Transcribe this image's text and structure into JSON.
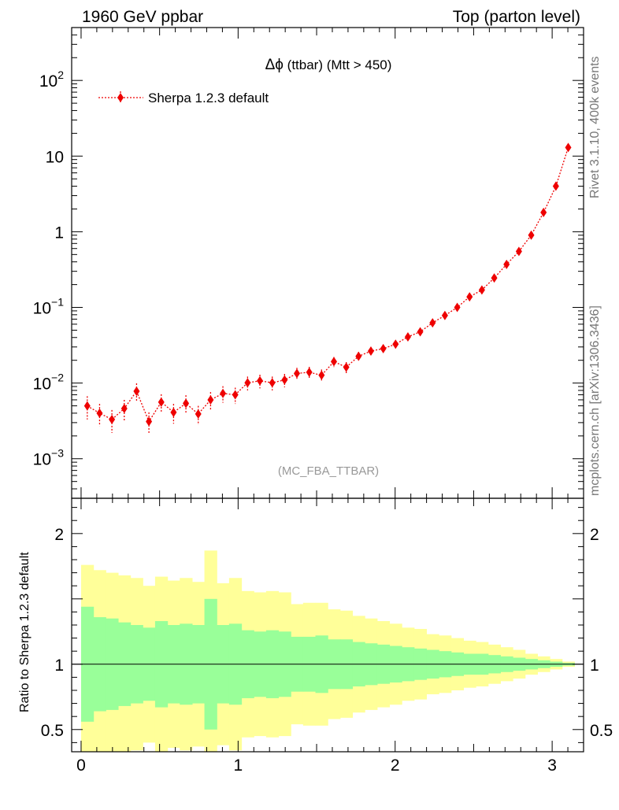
{
  "header": {
    "left": "1960 GeV ppbar",
    "right": "Top (parton level)"
  },
  "side_labels": {
    "rivet": "Rivet 3.1.10,  400k events",
    "mcplots": "mcplots.cern.ch [arXiv:1306.3436]"
  },
  "analysis_tag": "(MC_FBA_TTBAR)",
  "colors": {
    "data": "#ee0000",
    "band_inner": "#99ff99",
    "band_outer": "#ffff99"
  },
  "chart_data": [
    {
      "type": "scatter",
      "title": "Δφ (ttbar) (Mtt > 450)",
      "title_prefix": "Δϕ",
      "title_suffix": " (ttbar) (Mtt > 450)",
      "yscale": "log",
      "ylim": [
        0.0003,
        500
      ],
      "xlim": [
        -0.06,
        3.2
      ],
      "legend": {
        "label": "Sherpa 1.2.3 default",
        "placement": "top-left"
      },
      "y_tick_labels": [
        {
          "value": 0.001,
          "base": "10",
          "exp": "−3"
        },
        {
          "value": 0.01,
          "base": "10",
          "exp": "−2"
        },
        {
          "value": 0.1,
          "base": "10",
          "exp": "−1"
        },
        {
          "value": 1,
          "base": "1",
          "exp": ""
        },
        {
          "value": 10,
          "base": "10",
          "exp": ""
        },
        {
          "value": 100,
          "base": "10",
          "exp": "2"
        }
      ],
      "series": [
        {
          "name": "Sherpa 1.2.3 default",
          "x": [
            0.0393,
            0.1178,
            0.1963,
            0.2749,
            0.3534,
            0.432,
            0.5105,
            0.589,
            0.6676,
            0.7461,
            0.8247,
            0.9032,
            0.9817,
            1.0603,
            1.1388,
            1.2174,
            1.2959,
            1.3744,
            1.453,
            1.5315,
            1.6101,
            1.6886,
            1.7671,
            1.8457,
            1.9242,
            2.0028,
            2.0813,
            2.1598,
            2.2384,
            2.3169,
            2.3955,
            2.474,
            2.5525,
            2.6311,
            2.7096,
            2.7882,
            2.8667,
            2.9452,
            3.0238,
            3.1023
          ],
          "y": [
            0.005,
            0.004,
            0.0033,
            0.0046,
            0.0078,
            0.0031,
            0.0056,
            0.0041,
            0.0054,
            0.0039,
            0.006,
            0.0073,
            0.007,
            0.0101,
            0.0107,
            0.0101,
            0.011,
            0.0134,
            0.0139,
            0.0127,
            0.0192,
            0.0162,
            0.0226,
            0.0265,
            0.0285,
            0.0326,
            0.0408,
            0.0476,
            0.0625,
            0.0782,
            0.1001,
            0.138,
            0.17,
            0.245,
            0.37,
            0.55,
            0.9,
            1.8,
            4.0,
            13.0
          ],
          "yerr": [
            0.0017,
            0.0013,
            0.0011,
            0.0014,
            0.0021,
            0.001,
            0.0015,
            0.0012,
            0.0015,
            0.0011,
            0.0016,
            0.0018,
            0.0017,
            0.0021,
            0.0022,
            0.0021,
            0.0022,
            0.0025,
            0.0025,
            0.0024,
            0.0029,
            0.0027,
            0.0032,
            0.0034,
            0.0036,
            0.0038,
            0.0042,
            0.0046,
            0.0052,
            0.0058,
            0.0065,
            0.0076,
            0.0084,
            0.01,
            0.012,
            0.015,
            0.019,
            0.027,
            0.04,
            0.072
          ]
        }
      ]
    },
    {
      "type": "area",
      "ylabel": "Ratio to Sherpa 1.2.3 default",
      "xlim": [
        -0.06,
        3.2
      ],
      "ylim": [
        0.33,
        2.27
      ],
      "x_tick_labels": [
        "0",
        "1",
        "2",
        "3"
      ],
      "y_tick_labels": [
        "0.5",
        "1",
        "2"
      ],
      "reference_line": 1,
      "bin_edges": [
        0.0,
        0.0785,
        0.1571,
        0.2356,
        0.3142,
        0.3927,
        0.4712,
        0.5498,
        0.6283,
        0.7069,
        0.7854,
        0.8639,
        0.9425,
        1.021,
        1.0996,
        1.1781,
        1.2566,
        1.3352,
        1.4137,
        1.4923,
        1.5708,
        1.6493,
        1.7279,
        1.8064,
        1.885,
        1.9635,
        2.042,
        2.1206,
        2.1991,
        2.2777,
        2.3562,
        2.4347,
        2.5133,
        2.5918,
        2.6704,
        2.7489,
        2.8274,
        2.906,
        2.9845,
        3.0631,
        3.1416
      ],
      "outer_up": [
        1.76,
        1.72,
        1.7,
        1.68,
        1.66,
        1.6,
        1.67,
        1.64,
        1.66,
        1.63,
        1.87,
        1.62,
        1.66,
        1.56,
        1.55,
        1.56,
        1.55,
        1.46,
        1.47,
        1.47,
        1.42,
        1.41,
        1.37,
        1.35,
        1.33,
        1.31,
        1.28,
        1.27,
        1.23,
        1.22,
        1.2,
        1.18,
        1.17,
        1.15,
        1.13,
        1.11,
        1.08,
        1.06,
        1.04,
        1.02
      ],
      "outer_dn": [
        0.24,
        0.28,
        0.3,
        0.32,
        0.34,
        0.4,
        0.33,
        0.36,
        0.34,
        0.37,
        0.13,
        0.38,
        0.34,
        0.44,
        0.45,
        0.44,
        0.45,
        0.54,
        0.53,
        0.53,
        0.58,
        0.59,
        0.63,
        0.65,
        0.67,
        0.69,
        0.72,
        0.73,
        0.77,
        0.78,
        0.8,
        0.82,
        0.83,
        0.85,
        0.87,
        0.89,
        0.92,
        0.94,
        0.96,
        0.98
      ],
      "inner_up": [
        1.44,
        1.36,
        1.35,
        1.32,
        1.3,
        1.28,
        1.33,
        1.3,
        1.31,
        1.3,
        1.5,
        1.3,
        1.31,
        1.26,
        1.25,
        1.26,
        1.25,
        1.21,
        1.21,
        1.22,
        1.19,
        1.19,
        1.17,
        1.16,
        1.15,
        1.14,
        1.13,
        1.12,
        1.11,
        1.1,
        1.09,
        1.08,
        1.08,
        1.07,
        1.06,
        1.05,
        1.04,
        1.03,
        1.02,
        1.01
      ],
      "inner_dn": [
        0.56,
        0.64,
        0.65,
        0.68,
        0.7,
        0.72,
        0.67,
        0.7,
        0.69,
        0.7,
        0.5,
        0.7,
        0.69,
        0.74,
        0.75,
        0.74,
        0.75,
        0.79,
        0.79,
        0.78,
        0.81,
        0.81,
        0.83,
        0.84,
        0.85,
        0.86,
        0.87,
        0.88,
        0.89,
        0.9,
        0.91,
        0.92,
        0.92,
        0.93,
        0.94,
        0.95,
        0.96,
        0.97,
        0.98,
        0.99
      ]
    }
  ]
}
